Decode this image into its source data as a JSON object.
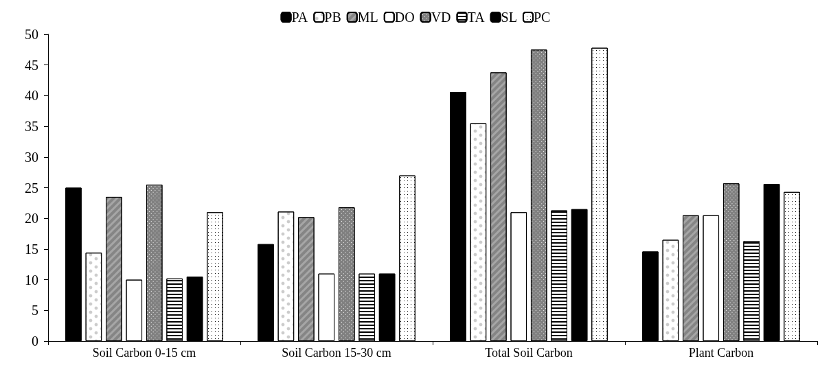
{
  "chart_data": {
    "type": "bar",
    "categories": [
      "Soil Carbon 0-15 cm",
      "Soil Carbon 15-30 cm",
      "Total Soil Carbon",
      "Plant Carbon"
    ],
    "series": [
      {
        "name": "PA",
        "color": "#000000",
        "values": [
          25,
          15.8,
          40.6,
          14.6
        ]
      },
      {
        "name": "PB",
        "color": "#ffffff",
        "values": [
          14.4,
          21.1,
          35.5,
          16.5
        ]
      },
      {
        "name": "ML",
        "color": "#a6a6a6",
        "values": [
          23.5,
          20.2,
          43.8,
          20.5
        ]
      },
      {
        "name": "DO",
        "color": "#ffffff",
        "values": [
          10,
          11,
          21,
          20.5
        ]
      },
      {
        "name": "VD",
        "color": "#808080",
        "values": [
          25.5,
          21.8,
          47.5,
          25.7
        ]
      },
      {
        "name": "TA",
        "color": "#ffffff",
        "values": [
          10.2,
          11,
          21.3,
          16.3
        ]
      },
      {
        "name": "SL",
        "color": "#000000",
        "values": [
          10.5,
          11,
          21.5,
          25.6
        ]
      },
      {
        "name": "PC",
        "color": "#ffffff",
        "values": [
          21,
          27,
          47.8,
          24.3
        ]
      }
    ],
    "ylim": [
      0,
      50
    ],
    "yticks": [
      0,
      5,
      10,
      15,
      20,
      25,
      30,
      35,
      40,
      45,
      50
    ],
    "grid": false,
    "legend": "top"
  }
}
